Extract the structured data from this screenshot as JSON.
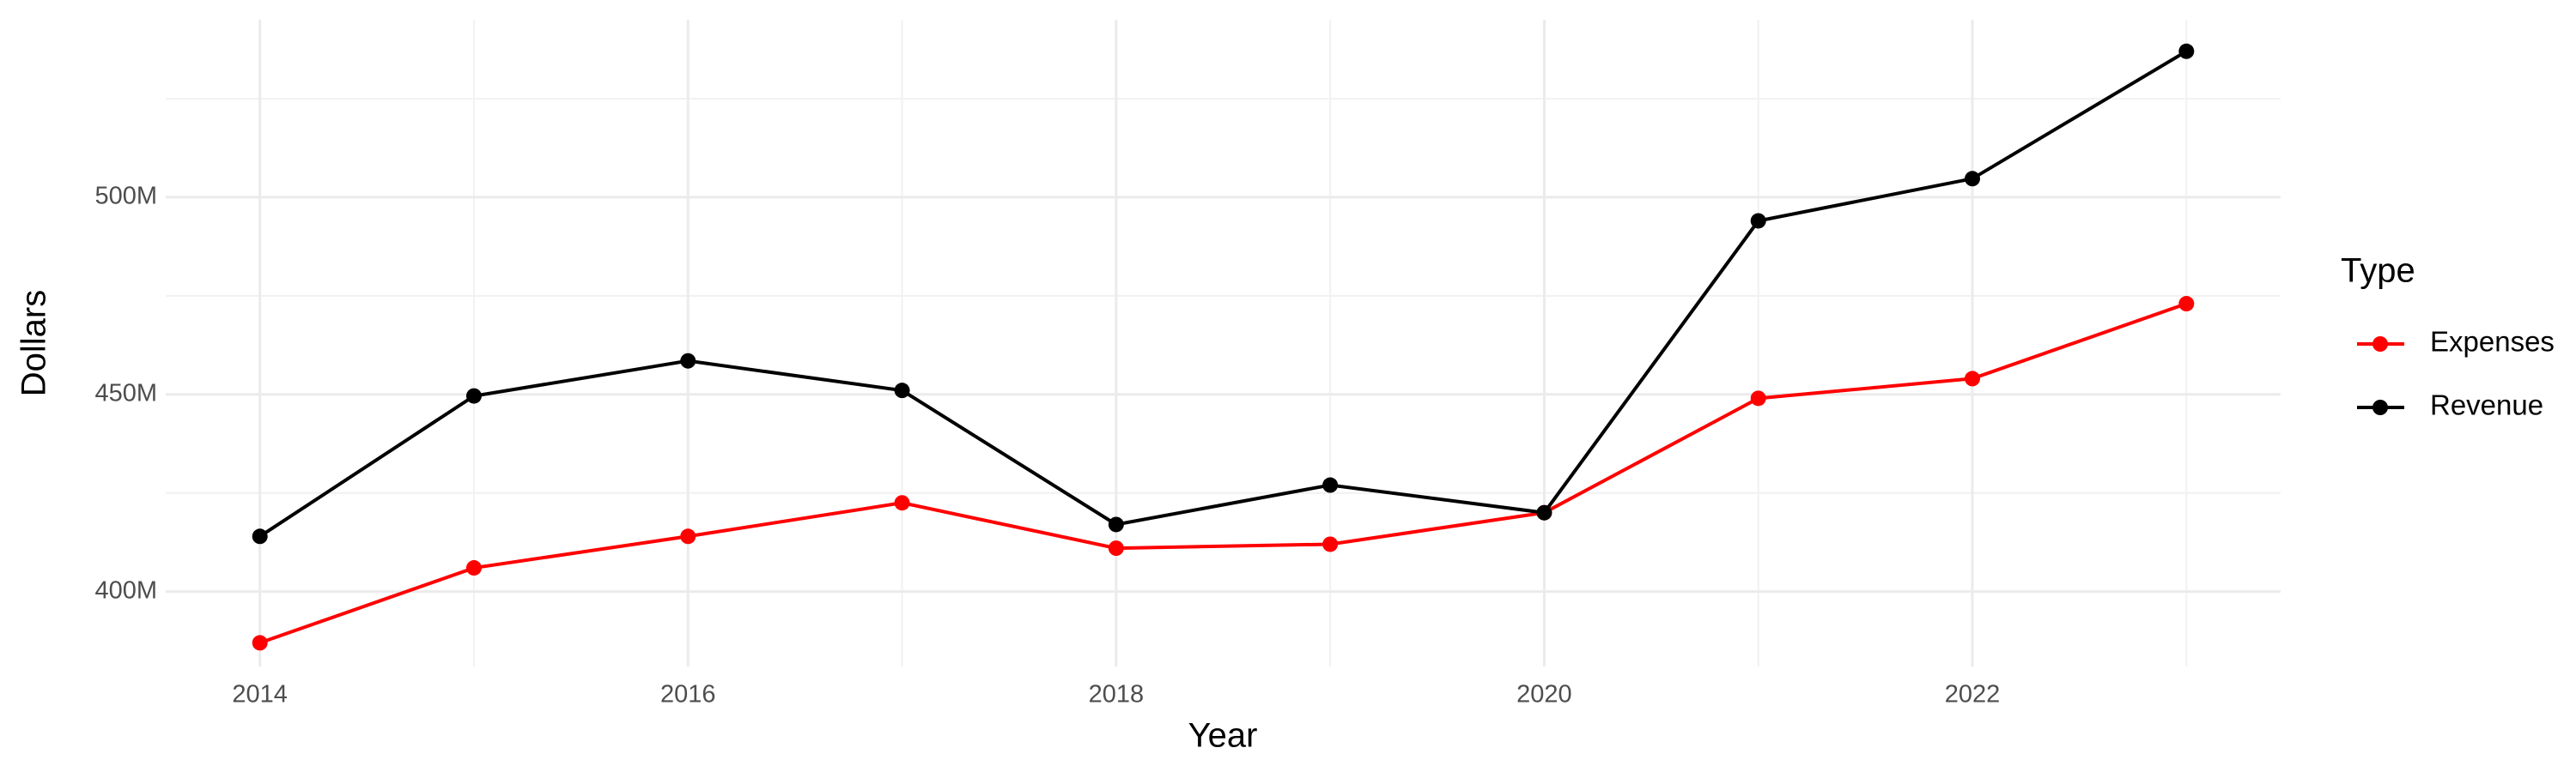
{
  "chart_data": {
    "type": "line",
    "x_label": "Year",
    "y_label": "Dollars",
    "x": [
      2014,
      2015,
      2016,
      2017,
      2018,
      2019,
      2020,
      2021,
      2022,
      2023
    ],
    "series": [
      {
        "name": "Expenses",
        "color": "#ff0000",
        "values": [
          387000000,
          406000000,
          414000000,
          422500000,
          411000000,
          412000000,
          420000000,
          449000000,
          454000000,
          473000000
        ]
      },
      {
        "name": "Revenue",
        "color": "#000000",
        "values": [
          414000000,
          449600000,
          458500000,
          451000000,
          417000000,
          427000000,
          420000000,
          494000000,
          504700000,
          537000000
        ]
      }
    ],
    "xlim": [
      2013.56,
      2023.44
    ],
    "xticks": [
      2014,
      2016,
      2018,
      2020,
      2022
    ],
    "ylim": [
      381000000,
      545000000
    ],
    "yticks": [
      {
        "value": 400000000,
        "label": "400M"
      },
      {
        "value": 450000000,
        "label": "450M"
      },
      {
        "value": 500000000,
        "label": "500M"
      }
    ],
    "grid": true,
    "minor_grid": true,
    "legend_title": "Type",
    "legend_position": "right"
  }
}
